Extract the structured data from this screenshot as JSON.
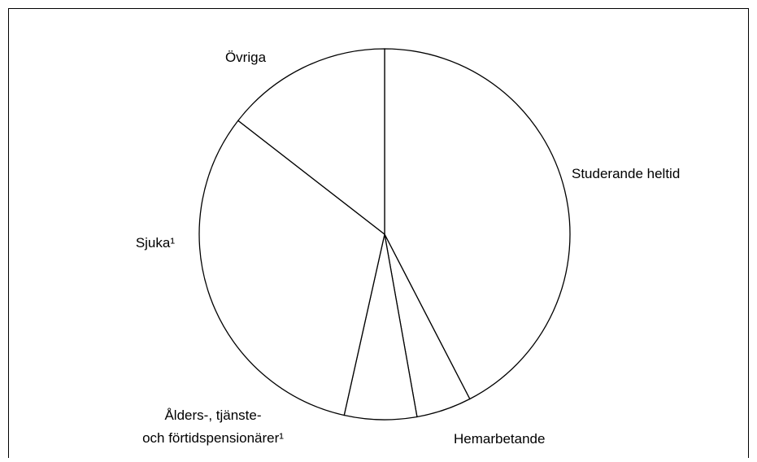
{
  "chart_data": {
    "type": "pie",
    "categories": [
      [
        "Studerande heltid"
      ],
      [
        "Hemarbetande"
      ],
      [
        "Ålders-, tjänste-",
        "och förtidspensionärer¹"
      ],
      [
        "Sjuka¹"
      ],
      [
        "Övriga"
      ]
    ],
    "values": [
      42.4,
      4.8,
      6.3,
      32,
      14.5
    ],
    "color": "#ffffff",
    "edge_color": "#000000"
  }
}
